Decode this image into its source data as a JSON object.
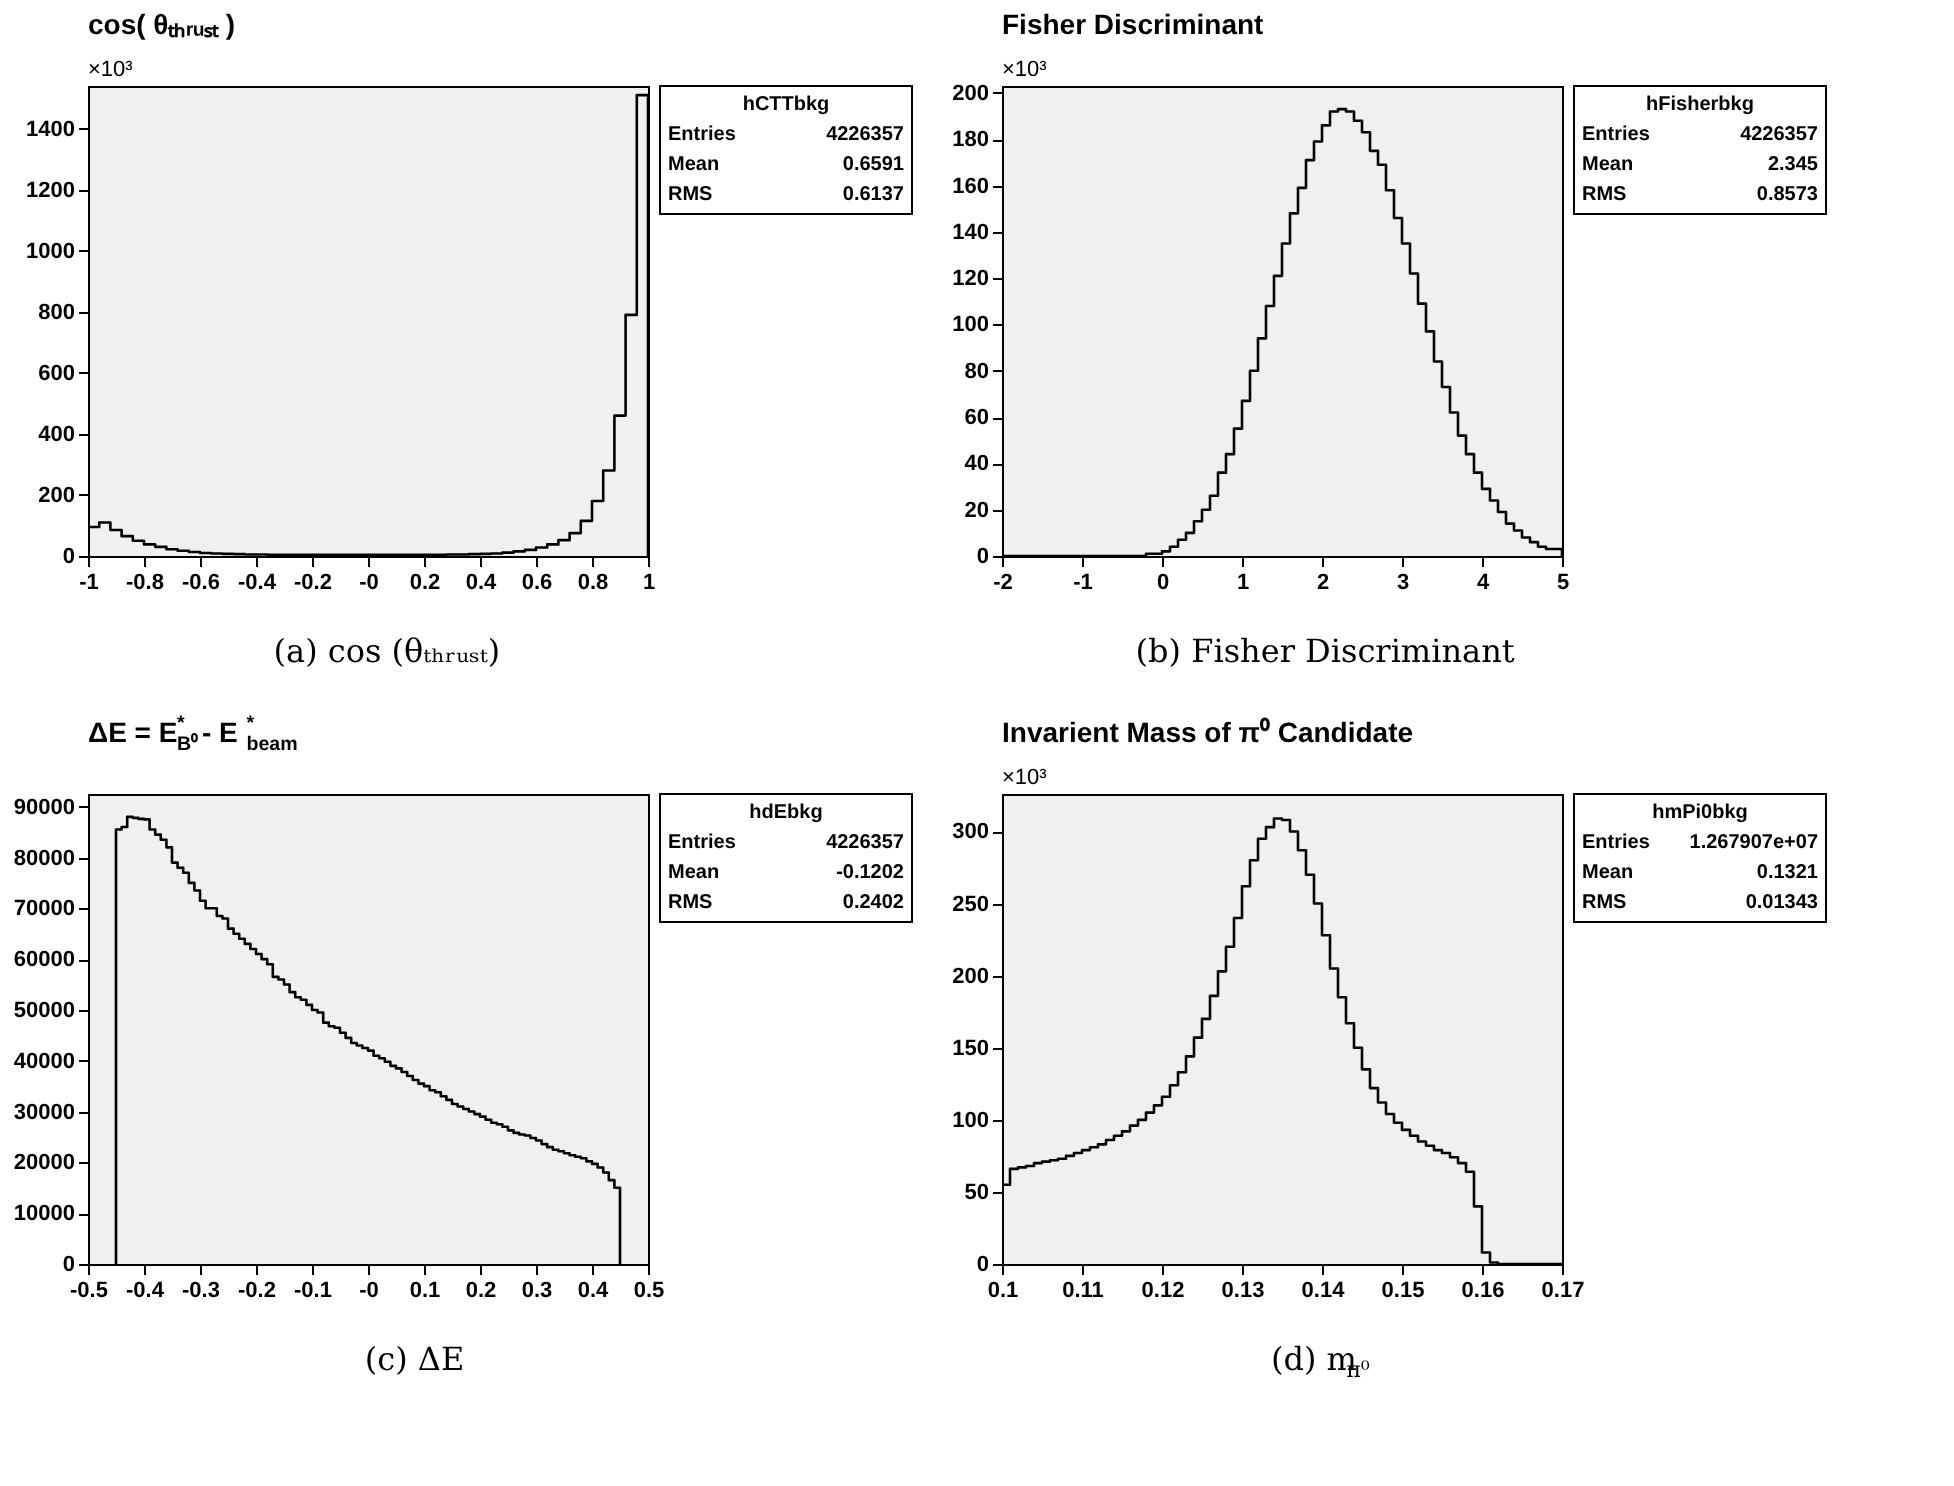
{
  "chart_data": [
    {
      "type": "histogram",
      "title": "cos( θₜₕᵣᵤₛₜ )",
      "color": "#000000",
      "bins": [
        -1,
        -0.96,
        -0.92,
        -0.88,
        -0.84,
        -0.8,
        -0.76,
        -0.72,
        -0.68,
        -0.64,
        -0.6,
        -0.56,
        -0.52,
        -0.48,
        -0.44,
        -0.4,
        -0.36,
        -0.32,
        -0.28,
        -0.24,
        -0.2,
        -0.16,
        -0.12,
        -0.08,
        -0.04,
        0,
        0.04,
        0.08,
        0.12,
        0.16,
        0.2,
        0.24,
        0.28,
        0.32,
        0.36,
        0.4,
        0.44,
        0.48,
        0.52,
        0.56,
        0.6,
        0.64,
        0.68,
        0.72,
        0.76,
        0.8,
        0.84,
        0.88,
        0.92,
        0.96,
        1
      ],
      "values": [
        95,
        110,
        85,
        65,
        50,
        38,
        30,
        22,
        17,
        13,
        10,
        8,
        7,
        6,
        5,
        5,
        4,
        4,
        4,
        4,
        4,
        4,
        4,
        4,
        4,
        4,
        4,
        4,
        4,
        4,
        4,
        4,
        5,
        5,
        6,
        7,
        8,
        11,
        15,
        20,
        28,
        38,
        52,
        75,
        115,
        180,
        280,
        460,
        790,
        1510
      ],
      "xlim": [
        -1,
        1
      ],
      "xticks": [
        -1,
        -0.8,
        -0.6,
        -0.4,
        -0.2,
        {
          "value": 0,
          "label": "-0"
        },
        0.2,
        0.4,
        0.6,
        0.8,
        1
      ],
      "ylim": [
        0,
        1540
      ],
      "yticks": [
        0,
        200,
        400,
        600,
        800,
        1000,
        1200,
        1400
      ],
      "annotations": [
        "hCTTbkg",
        "Entries 4226357",
        "Mean 0.6591",
        "RMS 0.6137",
        "×10³",
        "(a) cos (θₜₕᵣᵤₛₜ)"
      ]
    },
    {
      "type": "histogram",
      "title": "Fisher Discriminant",
      "color": "#000000",
      "bins": [
        -2,
        -1.9,
        -1.8,
        -1.7,
        -1.6,
        -1.5,
        -1.4,
        -1.3,
        -1.2,
        -1.1,
        -1,
        -0.9,
        -0.8,
        -0.7,
        -0.6,
        -0.5,
        -0.4,
        -0.3,
        -0.2,
        -0.1,
        0,
        0.1,
        0.2,
        0.3,
        0.4,
        0.5,
        0.6,
        0.7,
        0.8,
        0.9,
        1,
        1.1,
        1.2,
        1.3,
        1.4,
        1.5,
        1.6,
        1.7,
        1.8,
        1.9,
        2,
        2.1,
        2.2,
        2.3,
        2.4,
        2.5,
        2.6,
        2.7,
        2.8,
        2.9,
        3,
        3.1,
        3.2,
        3.3,
        3.4,
        3.5,
        3.6,
        3.7,
        3.8,
        3.9,
        4,
        4.1,
        4.2,
        4.3,
        4.4,
        4.5,
        4.6,
        4.7,
        4.8,
        4.9,
        5
      ],
      "values": [
        0,
        0,
        0,
        0,
        0,
        0,
        0,
        0,
        0,
        0,
        0,
        0,
        0,
        0,
        0,
        0,
        0,
        0,
        1,
        1,
        2,
        4,
        7,
        10,
        15,
        20,
        26,
        36,
        44,
        55,
        67,
        80,
        94,
        108,
        121,
        135,
        148,
        159,
        171,
        179,
        186,
        192,
        193,
        192,
        188,
        183,
        175,
        169,
        158,
        146,
        135,
        122,
        109,
        97,
        84,
        73,
        62,
        52,
        44,
        36,
        29,
        24,
        19,
        14,
        11,
        8,
        6,
        4,
        3,
        3
      ],
      "xlim": [
        -2,
        5
      ],
      "xticks": [
        -2,
        -1,
        0,
        1,
        2,
        3,
        4,
        5
      ],
      "ylim": [
        0,
        203
      ],
      "yticks": [
        0,
        20,
        40,
        60,
        80,
        100,
        120,
        140,
        160,
        180,
        200
      ],
      "annotations": [
        "hFisherbkg",
        "Entries 4226357",
        "Mean 2.345",
        "RMS 0.8573",
        "×10³",
        "(b) Fisher Discriminant"
      ]
    },
    {
      "type": "histogram",
      "title": "ΔE = E$^{*}$$_{B⁰}$ - E$^{*}$$_{beam}$",
      "color": "#000000",
      "bins": [
        -0.45,
        -0.44,
        -0.43,
        -0.42,
        -0.41,
        -0.4,
        -0.39,
        -0.38,
        -0.37,
        -0.36,
        -0.35,
        -0.34,
        -0.33,
        -0.32,
        -0.31,
        -0.3,
        -0.29,
        -0.28,
        -0.27,
        -0.26,
        -0.25,
        -0.24,
        -0.23,
        -0.22,
        -0.21,
        -0.2,
        -0.19,
        -0.18,
        -0.17,
        -0.16,
        -0.15,
        -0.14,
        -0.13,
        -0.12,
        -0.11,
        -0.1,
        -0.09,
        -0.08,
        -0.07,
        -0.06,
        -0.05,
        -0.04,
        -0.03,
        -0.02,
        -0.01,
        0,
        0.01,
        0.02,
        0.03,
        0.04,
        0.05,
        0.06,
        0.07,
        0.08,
        0.09,
        0.1,
        0.11,
        0.12,
        0.13,
        0.14,
        0.15,
        0.16,
        0.17,
        0.18,
        0.19,
        0.2,
        0.21,
        0.22,
        0.23,
        0.24,
        0.25,
        0.26,
        0.27,
        0.28,
        0.29,
        0.3,
        0.31,
        0.32,
        0.33,
        0.34,
        0.35,
        0.36,
        0.37,
        0.38,
        0.39,
        0.4,
        0.41,
        0.42,
        0.43,
        0.44,
        0.45
      ],
      "values": [
        85500,
        86000,
        88000,
        87800,
        87600,
        87500,
        85500,
        84500,
        83500,
        82000,
        79000,
        78000,
        77000,
        75000,
        73500,
        71500,
        70000,
        70000,
        68500,
        68000,
        66000,
        65000,
        64000,
        63000,
        62000,
        61000,
        60000,
        59000,
        56500,
        56000,
        55000,
        53500,
        52500,
        52000,
        51000,
        50000,
        49500,
        47500,
        46800,
        46500,
        45500,
        44500,
        43500,
        43000,
        42500,
        42000,
        41000,
        40500,
        39800,
        39000,
        38500,
        37800,
        37000,
        36200,
        35500,
        35000,
        34200,
        33800,
        33000,
        32300,
        31500,
        31000,
        30500,
        30000,
        29500,
        29000,
        28400,
        27800,
        27500,
        27000,
        26300,
        25800,
        25500,
        25300,
        24800,
        24300,
        23600,
        23000,
        22500,
        22200,
        21800,
        21400,
        21100,
        20800,
        20200,
        19700,
        19000,
        18000,
        16500,
        15000
      ],
      "xlim": [
        -0.5,
        0.5
      ],
      "xticks": [
        -0.5,
        -0.4,
        -0.3,
        -0.2,
        -0.1,
        {
          "value": 0,
          "label": "-0"
        },
        0.1,
        0.2,
        0.3,
        0.4,
        0.5
      ],
      "ylim": [
        0,
        92500
      ],
      "yticks": [
        0,
        10000,
        20000,
        30000,
        40000,
        50000,
        60000,
        70000,
        80000,
        90000
      ],
      "annotations": [
        "hdEbkg",
        "Entries 4226357",
        "Mean -0.1202",
        "RMS 0.2402",
        "(c) ΔE"
      ]
    },
    {
      "type": "histogram",
      "title": "Invarient Mass of π⁰ Candidate",
      "color": "#000000",
      "bins": [
        0.1,
        0.101,
        0.102,
        0.103,
        0.104,
        0.105,
        0.106,
        0.107,
        0.108,
        0.109,
        0.11,
        0.111,
        0.112,
        0.113,
        0.114,
        0.115,
        0.116,
        0.117,
        0.118,
        0.119,
        0.12,
        0.121,
        0.122,
        0.123,
        0.124,
        0.125,
        0.126,
        0.127,
        0.128,
        0.129,
        0.13,
        0.131,
        0.132,
        0.133,
        0.134,
        0.135,
        0.136,
        0.137,
        0.138,
        0.139,
        0.14,
        0.141,
        0.142,
        0.143,
        0.144,
        0.145,
        0.146,
        0.147,
        0.148,
        0.149,
        0.15,
        0.151,
        0.152,
        0.153,
        0.154,
        0.155,
        0.156,
        0.157,
        0.158,
        0.159,
        0.16,
        0.161,
        0.162,
        0.163,
        0.164,
        0.165,
        0.166,
        0.167,
        0.168,
        0.169,
        0.17
      ],
      "values": [
        55,
        66,
        67,
        68,
        70,
        71,
        72,
        73,
        75,
        77,
        79,
        81,
        83,
        86,
        89,
        92,
        96,
        100,
        105,
        110,
        116,
        124,
        133,
        144,
        157,
        170,
        186,
        203,
        220,
        240,
        262,
        280,
        295,
        303,
        309,
        308,
        300,
        287,
        270,
        250,
        228,
        205,
        185,
        167,
        150,
        135,
        122,
        112,
        104,
        98,
        93,
        89,
        85,
        82,
        79,
        77,
        74,
        70,
        64,
        40,
        8,
        1,
        0,
        0,
        0,
        0,
        0,
        0,
        0,
        0
      ],
      "xlim": [
        0.1,
        0.17
      ],
      "xticks": [
        0.1,
        0.11,
        0.12,
        0.13,
        0.14,
        0.15,
        0.16,
        0.17
      ],
      "ylim": [
        0,
        326
      ],
      "yticks": [
        0,
        50,
        100,
        150,
        200,
        250,
        300
      ],
      "annotations": [
        "hmPi0bkg",
        "Entries 1.267907e+07",
        "Mean 0.1321",
        "RMS 0.01343",
        "×10³",
        "(d) m$_{π⁰}$"
      ]
    }
  ]
}
